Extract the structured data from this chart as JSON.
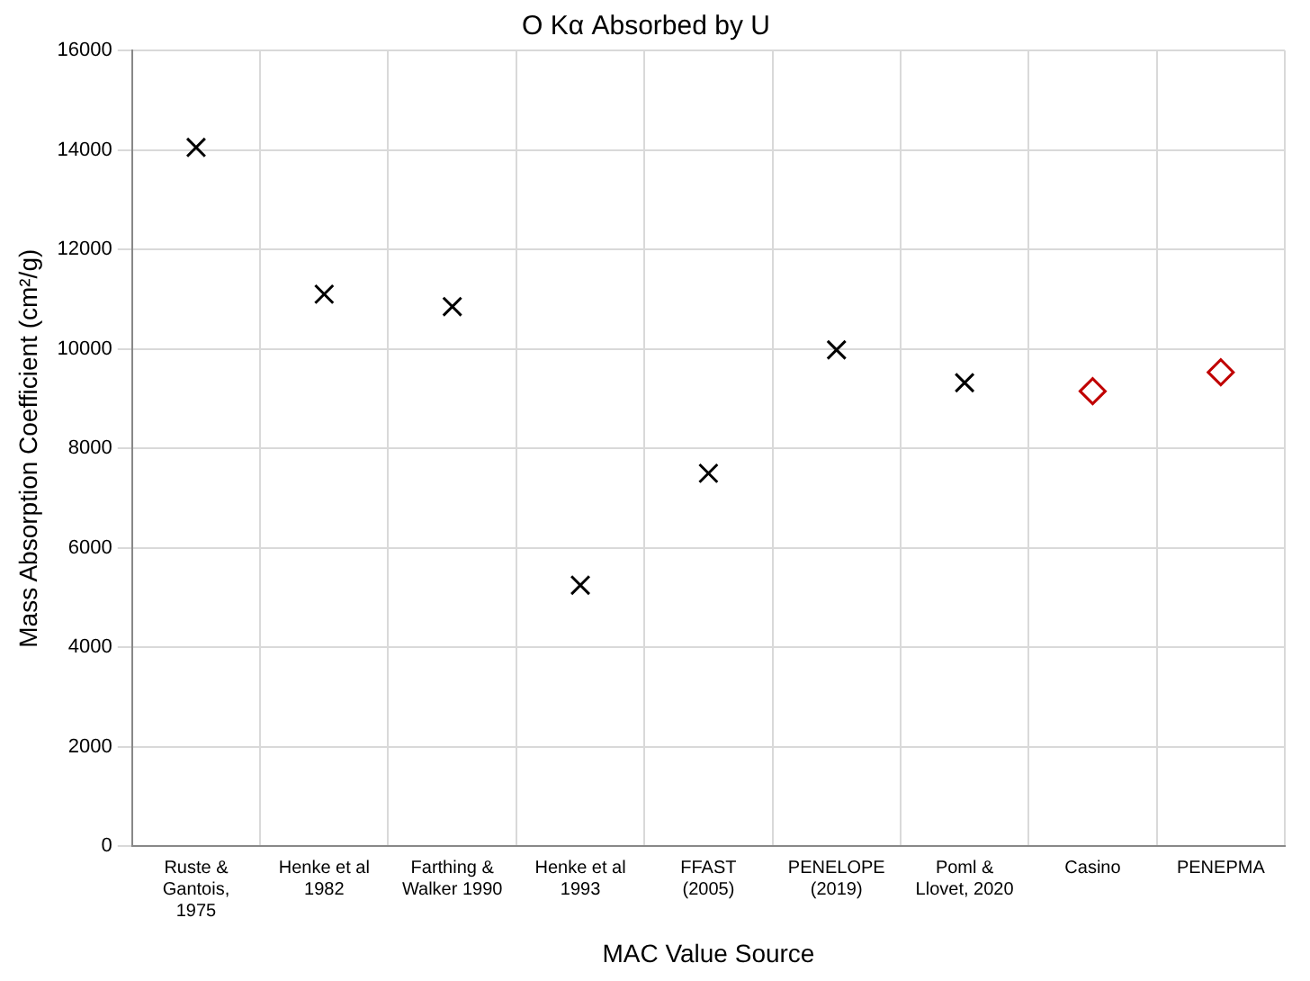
{
  "chart_data": {
    "type": "scatter",
    "title": "O Kα Absorbed by U",
    "xlabel": "MAC Value Source",
    "ylabel": "Mass Absorption Coefficient (cm²/g)",
    "categories": [
      "Ruste &\nGantois,\n1975",
      "Henke et al\n1982",
      "Farthing &\nWalker 1990",
      "Henke et al\n1993",
      "FFAST\n(2005)",
      "PENELOPE\n(2019)",
      "Poml &\nLlovet, 2020",
      "Casino",
      "PENEPMA"
    ],
    "series": [
      {
        "color": "#000000",
        "marker": "cross",
        "values": [
          14050,
          11100,
          10850,
          5250,
          7500,
          9980,
          9320,
          null,
          null
        ]
      },
      {
        "color": "#c00000",
        "marker": "diamond",
        "values": [
          null,
          null,
          null,
          null,
          null,
          null,
          null,
          9150,
          9530
        ]
      }
    ],
    "ylim": [
      0,
      16000
    ],
    "yticks": [
      0,
      2000,
      4000,
      6000,
      8000,
      10000,
      12000,
      14000,
      16000
    ],
    "grid": true,
    "legend": false
  }
}
